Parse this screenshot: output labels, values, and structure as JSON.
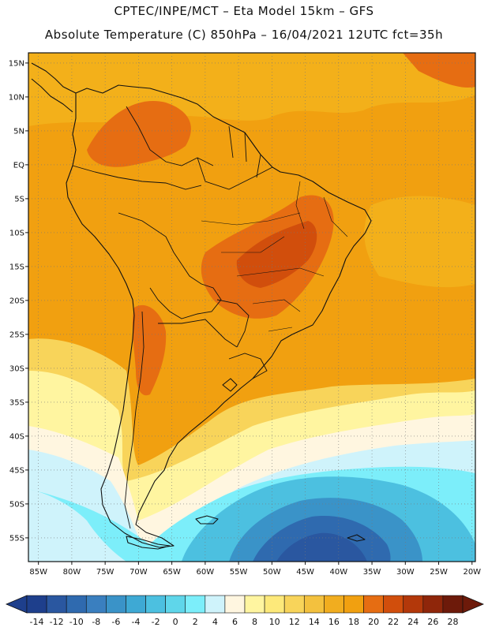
{
  "header": {
    "line1": "CPTEC/INPE/MCT –  Eta Model 15km – GFS",
    "line2": "Absolute Temperature (C) 850hPa – 16/04/2021 12UTC fct=35h"
  },
  "lat_ticks": [
    {
      "deg": 15,
      "label": "15N"
    },
    {
      "deg": 10,
      "label": "10N"
    },
    {
      "deg": 5,
      "label": "5N"
    },
    {
      "deg": 0,
      "label": "EQ"
    },
    {
      "deg": -5,
      "label": "5S"
    },
    {
      "deg": -10,
      "label": "10S"
    },
    {
      "deg": -15,
      "label": "15S"
    },
    {
      "deg": -20,
      "label": "20S"
    },
    {
      "deg": -25,
      "label": "25S"
    },
    {
      "deg": -30,
      "label": "30S"
    },
    {
      "deg": -35,
      "label": "35S"
    },
    {
      "deg": -40,
      "label": "40S"
    },
    {
      "deg": -45,
      "label": "45S"
    },
    {
      "deg": -50,
      "label": "50S"
    },
    {
      "deg": -55,
      "label": "55S"
    }
  ],
  "lon_ticks": [
    {
      "deg": -85,
      "label": "85W"
    },
    {
      "deg": -80,
      "label": "80W"
    },
    {
      "deg": -75,
      "label": "75W"
    },
    {
      "deg": -70,
      "label": "70W"
    },
    {
      "deg": -65,
      "label": "65W"
    },
    {
      "deg": -60,
      "label": "60W"
    },
    {
      "deg": -55,
      "label": "55W"
    },
    {
      "deg": -50,
      "label": "50W"
    },
    {
      "deg": -45,
      "label": "45W"
    },
    {
      "deg": -40,
      "label": "40W"
    },
    {
      "deg": -35,
      "label": "35W"
    },
    {
      "deg": -30,
      "label": "30W"
    },
    {
      "deg": -25,
      "label": "25W"
    },
    {
      "deg": -20,
      "label": "20W"
    }
  ],
  "colorbar": {
    "labels": [
      "-14",
      "-12",
      "-10",
      "-8",
      "-6",
      "-4",
      "-2",
      "0",
      "2",
      "4",
      "6",
      "8",
      "10",
      "12",
      "14",
      "16",
      "18",
      "20",
      "22",
      "24",
      "26",
      "28"
    ],
    "colors": [
      "#1e3f8c",
      "#2a57a0",
      "#2f6aaf",
      "#3a7fbf",
      "#3a93c8",
      "#3ea9d4",
      "#4cc0e0",
      "#5fd6ea",
      "#7ceefa",
      "#cff3fb",
      "#fff6e0",
      "#fff5a0",
      "#fde97a",
      "#f8d45a",
      "#f3c13e",
      "#f1ad1f",
      "#f1a010",
      "#e66d12",
      "#d14e0c",
      "#b3380a",
      "#8f260a",
      "#6d1a0a"
    ]
  },
  "fields": {
    "background": "#f1a010",
    "warm_north": "#f3b01a",
    "hot": "#e66d12",
    "very_hot": "#d14e0c",
    "warm_yellow": "#f8d45a",
    "pale_yellow": "#fff5a0",
    "cream": "#fff6e0",
    "pale_blue": "#cff3fb",
    "light_cyan": "#7ceefa",
    "cyan": "#4cc0e0",
    "mid_blue": "#3a93c8",
    "blue": "#2f6aaf",
    "deep_blue": "#2a57a0"
  }
}
